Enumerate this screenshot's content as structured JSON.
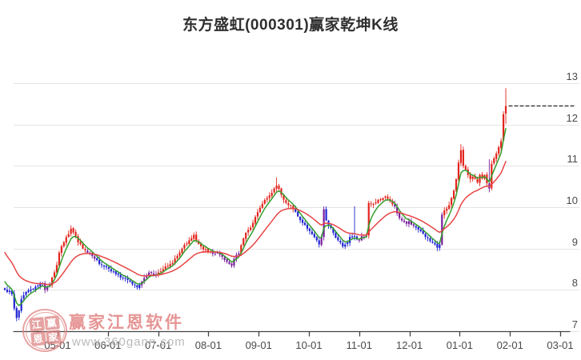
{
  "title": "东方盛虹(000301)赢家乾坤K线",
  "watermark": {
    "brand_text": "赢家江恩软件",
    "url_text": "www.360gann.com",
    "stamp_chars": [
      "江",
      "赢",
      "恩",
      "家"
    ]
  },
  "colors": {
    "up_candle": "#e3241d",
    "down_candle": "#1f23d4",
    "neutral_candle": "#7a1e9c",
    "ma_fast": "#33a02c",
    "ma_slow": "#e84545",
    "grid": "#e4e4e4",
    "axis": "#444444",
    "last_price_line": "#111111",
    "label_text": "#4a4a4a",
    "title_text": "#2f2f2f",
    "watermark_pink": "#e08282"
  },
  "chart_data": {
    "type": "candlestick",
    "title": "东方盛虹(000301)赢家乾坤K线",
    "x_ticks": [
      "05-01",
      "06-01",
      "07-01",
      "08-01",
      "09-01",
      "10-01",
      "11-01",
      "12-01",
      "01-01",
      "02-01",
      "03-01"
    ],
    "y_ticks": [
      13,
      12,
      11,
      10,
      9,
      8,
      7
    ],
    "ylim": [
      7,
      13
    ],
    "grid": true,
    "legend": "none",
    "days_total": 213,
    "last_price": 12.45,
    "close_anchors": [
      [
        0,
        8.0
      ],
      [
        1,
        7.95
      ],
      [
        2,
        7.98
      ],
      [
        3,
        7.9
      ],
      [
        4,
        7.55
      ],
      [
        5,
        7.32
      ],
      [
        6,
        7.5
      ],
      [
        7,
        7.78
      ],
      [
        9,
        7.95
      ],
      [
        12,
        8.02
      ],
      [
        14,
        8.1
      ],
      [
        16,
        8.15
      ],
      [
        17,
        8.0
      ],
      [
        19,
        8.12
      ],
      [
        20,
        8.3
      ],
      [
        22,
        8.6
      ],
      [
        23,
        8.9
      ],
      [
        25,
        9.15
      ],
      [
        27,
        9.35
      ],
      [
        28,
        9.48
      ],
      [
        30,
        9.3
      ],
      [
        31,
        9.15
      ],
      [
        33,
        9.0
      ],
      [
        35,
        8.9
      ],
      [
        37,
        8.82
      ],
      [
        39,
        8.72
      ],
      [
        41,
        8.6
      ],
      [
        43,
        8.55
      ],
      [
        45,
        8.45
      ],
      [
        47,
        8.38
      ],
      [
        49,
        8.3
      ],
      [
        51,
        8.27
      ],
      [
        53,
        8.2
      ],
      [
        55,
        8.12
      ],
      [
        56,
        8.06
      ],
      [
        58,
        8.2
      ],
      [
        60,
        8.35
      ],
      [
        61,
        8.42
      ],
      [
        63,
        8.35
      ],
      [
        65,
        8.42
      ],
      [
        67,
        8.5
      ],
      [
        69,
        8.58
      ],
      [
        71,
        8.65
      ],
      [
        73,
        8.82
      ],
      [
        75,
        9.0
      ],
      [
        77,
        9.12
      ],
      [
        79,
        9.25
      ],
      [
        80,
        9.33
      ],
      [
        81,
        9.18
      ],
      [
        83,
        9.05
      ],
      [
        85,
        8.98
      ],
      [
        87,
        8.92
      ],
      [
        89,
        8.88
      ],
      [
        91,
        8.85
      ],
      [
        92,
        8.8
      ],
      [
        94,
        8.68
      ],
      [
        96,
        8.58
      ],
      [
        97,
        8.75
      ],
      [
        99,
        8.88
      ],
      [
        100,
        9.08
      ],
      [
        102,
        9.38
      ],
      [
        103,
        9.45
      ],
      [
        105,
        9.62
      ],
      [
        107,
        9.88
      ],
      [
        109,
        10.08
      ],
      [
        111,
        10.22
      ],
      [
        113,
        10.35
      ],
      [
        115,
        10.52
      ],
      [
        117,
        10.3
      ],
      [
        118,
        10.18
      ],
      [
        120,
        10.05
      ],
      [
        122,
        9.95
      ],
      [
        124,
        9.78
      ],
      [
        126,
        9.62
      ],
      [
        128,
        9.48
      ],
      [
        130,
        9.35
      ],
      [
        132,
        9.2
      ],
      [
        133,
        9.1
      ],
      [
        134,
        9.28
      ],
      [
        135,
        9.95
      ],
      [
        136,
        9.68
      ],
      [
        138,
        9.5
      ],
      [
        139,
        9.38
      ],
      [
        141,
        9.2
      ],
      [
        143,
        9.05
      ],
      [
        145,
        9.15
      ],
      [
        146,
        9.28
      ],
      [
        148,
        9.3
      ],
      [
        150,
        9.2
      ],
      [
        151,
        9.3
      ],
      [
        153,
        9.32
      ],
      [
        154,
        10.1
      ],
      [
        156,
        10.08
      ],
      [
        158,
        10.18
      ],
      [
        160,
        10.22
      ],
      [
        161,
        10.26
      ],
      [
        163,
        10.15
      ],
      [
        165,
        10.02
      ],
      [
        166,
        9.85
      ],
      [
        168,
        9.68
      ],
      [
        170,
        9.6
      ],
      [
        171,
        9.66
      ],
      [
        173,
        9.55
      ],
      [
        175,
        9.46
      ],
      [
        177,
        9.36
      ],
      [
        178,
        9.28
      ],
      [
        180,
        9.18
      ],
      [
        182,
        9.1
      ],
      [
        183,
        9.02
      ],
      [
        184,
        9.1
      ],
      [
        185,
        9.82
      ],
      [
        186,
        9.92
      ],
      [
        188,
        10.05
      ],
      [
        189,
        10.22
      ],
      [
        190,
        10.4
      ],
      [
        191,
        10.68
      ],
      [
        192,
        11.08
      ],
      [
        193,
        11.38
      ],
      [
        194,
        11.0
      ],
      [
        196,
        10.78
      ],
      [
        197,
        10.68
      ],
      [
        198,
        10.74
      ],
      [
        200,
        10.6
      ],
      [
        201,
        10.78
      ],
      [
        202,
        10.7
      ],
      [
        203,
        10.78
      ],
      [
        205,
        10.45
      ],
      [
        206,
        11.05
      ],
      [
        207,
        11.18
      ],
      [
        208,
        11.3
      ],
      [
        209,
        11.45
      ],
      [
        210,
        11.6
      ],
      [
        211,
        12.25
      ],
      [
        212,
        12.45
      ]
    ],
    "wick_overrides": [
      {
        "day": 5,
        "low": 7.24
      },
      {
        "day": 28,
        "high": 9.56
      },
      {
        "day": 115,
        "high": 10.72
      },
      {
        "day": 135,
        "high": 10.02
      },
      {
        "day": 148,
        "high": 10.02
      },
      {
        "day": 193,
        "high": 11.52
      },
      {
        "day": 205,
        "high": 11.16,
        "low": 10.36
      },
      {
        "day": 212,
        "high": 12.88,
        "low": 12.02
      }
    ],
    "trend_color_runs": [
      {
        "from": 0,
        "to": 16,
        "trend": "down"
      },
      {
        "from": 17,
        "to": 19,
        "trend": "neutral"
      },
      {
        "from": 20,
        "to": 34,
        "trend": "up"
      },
      {
        "from": 35,
        "to": 38,
        "trend": "neutral"
      },
      {
        "from": 39,
        "to": 57,
        "trend": "down"
      },
      {
        "from": 58,
        "to": 64,
        "trend": "neutral"
      },
      {
        "from": 65,
        "to": 87,
        "trend": "up"
      },
      {
        "from": 88,
        "to": 99,
        "trend": "neutral"
      },
      {
        "from": 100,
        "to": 122,
        "trend": "up"
      },
      {
        "from": 123,
        "to": 133,
        "trend": "down"
      },
      {
        "from": 134,
        "to": 135,
        "trend": "neutral"
      },
      {
        "from": 136,
        "to": 149,
        "trend": "down"
      },
      {
        "from": 150,
        "to": 153,
        "trend": "neutral"
      },
      {
        "from": 154,
        "to": 164,
        "trend": "up"
      },
      {
        "from": 165,
        "to": 173,
        "trend": "neutral"
      },
      {
        "from": 174,
        "to": 184,
        "trend": "down"
      },
      {
        "from": 185,
        "to": 185,
        "trend": "neutral"
      },
      {
        "from": 186,
        "to": 204,
        "trend": "up"
      },
      {
        "from": 205,
        "to": 205,
        "trend": "neutral"
      },
      {
        "from": 206,
        "to": 212,
        "trend": "up"
      }
    ],
    "moving_averages": [
      {
        "name": "fast",
        "period": 5,
        "init": 8.3,
        "color_key": "ma_fast"
      },
      {
        "name": "slow",
        "period": 20,
        "init": 9.0,
        "color_key": "ma_slow"
      }
    ]
  }
}
